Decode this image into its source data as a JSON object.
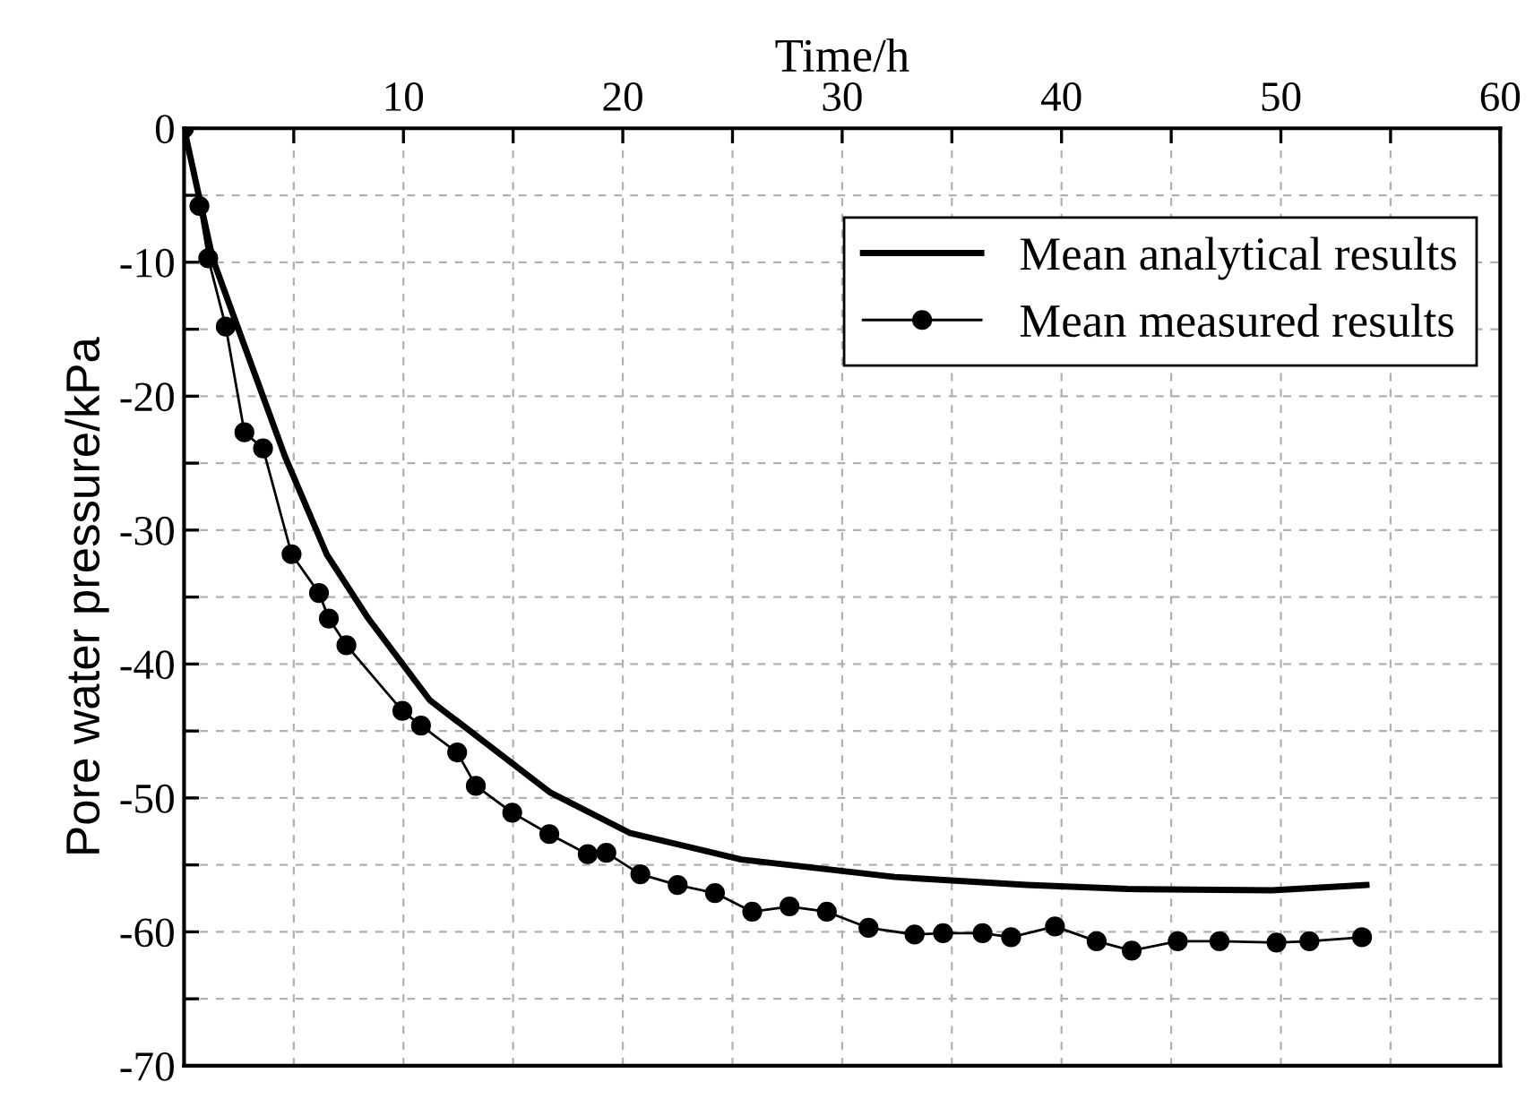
{
  "chart_data": {
    "type": "line",
    "xlabel": "Time/h",
    "ylabel": "Pore water pressure/kPa",
    "xlim": [
      0,
      60
    ],
    "xticks": [
      {
        "value": 0,
        "label": null
      },
      {
        "value": 5,
        "label": null
      },
      10,
      {
        "value": 15,
        "label": null
      },
      20,
      {
        "value": 25,
        "label": null
      },
      30,
      {
        "value": 35,
        "label": null
      },
      40,
      {
        "value": 45,
        "label": null
      },
      50,
      {
        "value": 55,
        "label": null
      },
      60
    ],
    "ylim": [
      -70,
      0
    ],
    "yticks": [
      0,
      {
        "value": -5,
        "label": null
      },
      -10,
      {
        "value": -15,
        "label": null
      },
      -20,
      {
        "value": -25,
        "label": null
      },
      -30,
      {
        "value": -35,
        "label": null
      },
      -40,
      {
        "value": -45,
        "label": null
      },
      -50,
      {
        "value": -55,
        "label": null
      },
      -60,
      {
        "value": -65,
        "label": null
      },
      -70
    ],
    "grid": true,
    "legend": "top right",
    "series": [
      {
        "name": "Mean analytical results",
        "color": "#000000",
        "marker": "none",
        "line_style": "solid",
        "x": [
          0,
          1.3,
          2.7,
          4.6,
          6.5,
          8.4,
          11.2,
          16.7,
          20.3,
          25.4,
          32.4,
          38.4,
          43,
          49.6,
          53.9
        ],
        "values": [
          0,
          -9.7,
          -16,
          -24.5,
          -31.8,
          -36.6,
          -42.7,
          -49.6,
          -52.6,
          -54.6,
          -55.9,
          -56.5,
          -56.8,
          -56.9,
          -56.5
        ]
      },
      {
        "name": "Mean measured results",
        "color": "#000000",
        "marker": "circle",
        "line_style": "solid",
        "x": [
          0,
          0.7,
          1.1,
          1.9,
          2.75,
          3.6,
          4.9,
          6.15,
          6.6,
          7.4,
          9.95,
          10.8,
          12.45,
          13.3,
          14.96,
          16.65,
          18.4,
          19.25,
          20.8,
          22.5,
          24.2,
          25.9,
          27.6,
          29.3,
          31.2,
          33.3,
          34.6,
          36.4,
          37.7,
          39.7,
          41.6,
          43.2,
          45.3,
          47.2,
          49.8,
          51.3,
          53.7
        ],
        "values": [
          0,
          -5.8,
          -9.7,
          -14.8,
          -22.7,
          -23.9,
          -31.8,
          -34.7,
          -36.6,
          -38.6,
          -43.5,
          -44.6,
          -46.6,
          -49.1,
          -51.1,
          -52.7,
          -54.2,
          -54.1,
          -55.7,
          -56.5,
          -57.1,
          -58.5,
          -58.1,
          -58.5,
          -59.7,
          -60.2,
          -60.1,
          -60.1,
          -60.4,
          -59.6,
          -60.7,
          -61.4,
          -60.7,
          -60.7,
          -60.8,
          -60.7,
          -60.4
        ]
      }
    ]
  }
}
